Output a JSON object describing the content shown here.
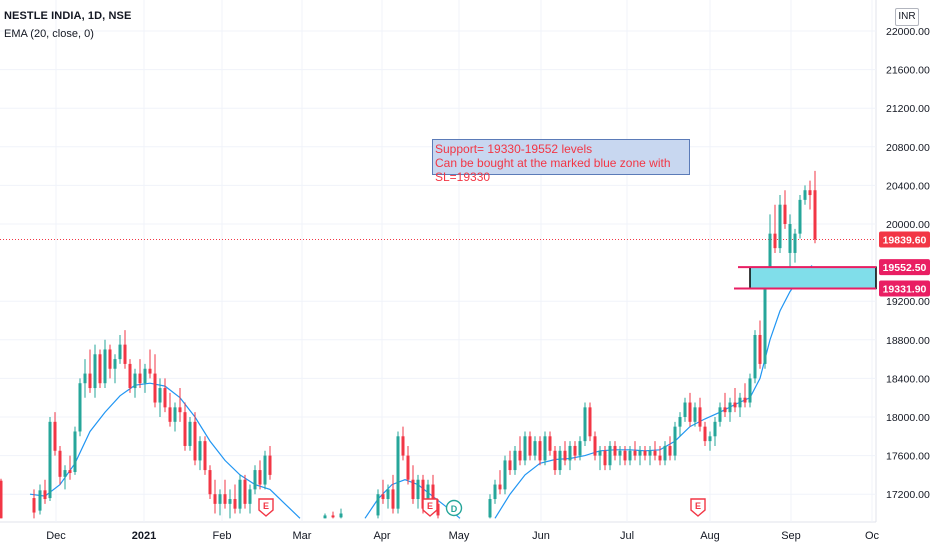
{
  "header": {
    "title": "NESTLE INDIA, 1D, NSE",
    "indicator": "EMA (20, close, 0)",
    "currency": "INR"
  },
  "annotation": {
    "line1": "Support= 19330-19552 levels",
    "line2": "Can be bought at the marked blue zone with SL=19330"
  },
  "price_labels": {
    "last": "19839.60",
    "zone_top": "19552.50",
    "zone_bottom": "19331.90"
  },
  "earnings_marker": "E",
  "dividend_marker": "D",
  "colors": {
    "up": "#26a69a",
    "down": "#f23645",
    "ema": "#2196f3",
    "zone_fill": "#80deea",
    "zone_line": "#e91e63",
    "last_price": "#f23645"
  },
  "chart_data": {
    "type": "candlestick",
    "title": "NESTLE INDIA, 1D, NSE",
    "indicator": "EMA (20, close, 0)",
    "y_axis": {
      "ticks": [
        "22000.00",
        "21600.00",
        "21200.00",
        "20800.00",
        "20400.00",
        "20000.00",
        "19200.00",
        "18800.00",
        "18400.00",
        "18000.00",
        "17600.00",
        "17200.00"
      ],
      "ylim": [
        16950,
        22200
      ]
    },
    "x_axis": {
      "ticks": [
        "Dec",
        "2021",
        "Feb",
        "Mar",
        "Apr",
        "May",
        "Jun",
        "Jul",
        "Aug",
        "Sep",
        "Oc"
      ]
    },
    "support_zone": [
      19331.9,
      19552.5
    ],
    "last_price": 19839.6,
    "earnings_markers": [
      "Feb",
      "Apr",
      "Aug"
    ],
    "dividend_markers": [
      "Apr"
    ],
    "ema_path_points": [
      [
        30,
        17200
      ],
      [
        45,
        17180
      ],
      [
        60,
        17300
      ],
      [
        75,
        17520
      ],
      [
        90,
        17850
      ],
      [
        105,
        18050
      ],
      [
        120,
        18220
      ],
      [
        135,
        18330
      ],
      [
        150,
        18350
      ],
      [
        165,
        18320
      ],
      [
        180,
        18200
      ],
      [
        195,
        18000
      ],
      [
        210,
        17750
      ],
      [
        225,
        17550
      ],
      [
        240,
        17400
      ],
      [
        255,
        17300
      ],
      [
        270,
        17250
      ],
      [
        285,
        17100
      ],
      [
        300,
        16950
      ],
      [
        365,
        16950
      ],
      [
        378,
        17150
      ],
      [
        392,
        17300
      ],
      [
        405,
        17350
      ],
      [
        418,
        17300
      ],
      [
        430,
        17200
      ],
      [
        445,
        17080
      ],
      [
        460,
        16950
      ],
      [
        495,
        16950
      ],
      [
        510,
        17200
      ],
      [
        525,
        17400
      ],
      [
        540,
        17520
      ],
      [
        555,
        17560
      ],
      [
        570,
        17570
      ],
      [
        585,
        17600
      ],
      [
        600,
        17650
      ],
      [
        615,
        17660
      ],
      [
        630,
        17660
      ],
      [
        645,
        17650
      ],
      [
        660,
        17660
      ],
      [
        675,
        17750
      ],
      [
        690,
        17900
      ],
      [
        705,
        17980
      ],
      [
        720,
        18050
      ],
      [
        735,
        18130
      ],
      [
        750,
        18200
      ],
      [
        760,
        18400
      ],
      [
        770,
        18800
      ],
      [
        780,
        19100
      ],
      [
        790,
        19300
      ],
      [
        800,
        19450
      ],
      [
        812,
        19570
      ]
    ],
    "candles": [
      [
        1,
        17340,
        17360,
        16950,
        16950,
        "d"
      ],
      [
        34,
        17160,
        17250,
        16950,
        17010,
        "d"
      ],
      [
        40,
        17030,
        17300,
        16990,
        17240,
        "u"
      ],
      [
        45,
        17240,
        17350,
        17100,
        17150,
        "d"
      ],
      [
        50,
        17160,
        18000,
        17130,
        17950,
        "u"
      ],
      [
        55,
        17950,
        18050,
        17600,
        17650,
        "d"
      ],
      [
        60,
        17650,
        17700,
        17300,
        17380,
        "d"
      ],
      [
        65,
        17380,
        17500,
        17250,
        17450,
        "u"
      ],
      [
        70,
        17450,
        17600,
        17350,
        17420,
        "d"
      ],
      [
        75,
        17430,
        17900,
        17400,
        17850,
        "u"
      ],
      [
        80,
        17850,
        18400,
        17800,
        18350,
        "u"
      ],
      [
        85,
        18350,
        18600,
        18200,
        18450,
        "u"
      ],
      [
        90,
        18450,
        18700,
        18250,
        18300,
        "d"
      ],
      [
        95,
        18300,
        18750,
        18200,
        18650,
        "u"
      ],
      [
        100,
        18650,
        18700,
        18300,
        18350,
        "d"
      ],
      [
        105,
        18350,
        18800,
        18300,
        18700,
        "u"
      ],
      [
        110,
        18700,
        18750,
        18400,
        18500,
        "d"
      ],
      [
        115,
        18500,
        18650,
        18350,
        18600,
        "u"
      ],
      [
        120,
        18600,
        18850,
        18550,
        18750,
        "u"
      ],
      [
        125,
        18750,
        18900,
        18500,
        18550,
        "d"
      ],
      [
        130,
        18550,
        18600,
        18250,
        18300,
        "d"
      ],
      [
        135,
        18300,
        18500,
        18200,
        18450,
        "u"
      ],
      [
        140,
        18450,
        18600,
        18300,
        18350,
        "d"
      ],
      [
        145,
        18350,
        18550,
        18250,
        18500,
        "u"
      ],
      [
        150,
        18500,
        18700,
        18400,
        18450,
        "d"
      ],
      [
        155,
        18450,
        18650,
        18100,
        18150,
        "d"
      ],
      [
        160,
        18150,
        18400,
        18000,
        18300,
        "u"
      ],
      [
        165,
        18300,
        18400,
        18050,
        18100,
        "d"
      ],
      [
        170,
        18100,
        18250,
        17900,
        17950,
        "d"
      ],
      [
        175,
        17950,
        18150,
        17850,
        18100,
        "u"
      ],
      [
        180,
        18100,
        18300,
        17950,
        18050,
        "d"
      ],
      [
        185,
        18050,
        18150,
        17650,
        17700,
        "d"
      ],
      [
        190,
        17700,
        18000,
        17650,
        17950,
        "u"
      ],
      [
        195,
        17950,
        18050,
        17500,
        17550,
        "d"
      ],
      [
        200,
        17550,
        17800,
        17450,
        17750,
        "u"
      ],
      [
        205,
        17750,
        17800,
        17400,
        17450,
        "d"
      ],
      [
        210,
        17450,
        17500,
        17150,
        17200,
        "d"
      ],
      [
        215,
        17200,
        17350,
        17000,
        17100,
        "d"
      ],
      [
        220,
        17100,
        17250,
        16980,
        17200,
        "u"
      ],
      [
        225,
        17200,
        17350,
        17050,
        17100,
        "d"
      ],
      [
        230,
        17100,
        17250,
        16950,
        17150,
        "u"
      ],
      [
        235,
        17150,
        17300,
        17000,
        17050,
        "d"
      ],
      [
        240,
        17050,
        17400,
        17000,
        17350,
        "u"
      ],
      [
        245,
        17350,
        17400,
        17050,
        17100,
        "d"
      ],
      [
        250,
        17100,
        17300,
        17000,
        17250,
        "u"
      ],
      [
        255,
        17250,
        17500,
        17200,
        17450,
        "u"
      ],
      [
        260,
        17450,
        17550,
        17250,
        17300,
        "d"
      ],
      [
        265,
        17300,
        17650,
        17250,
        17600,
        "u"
      ],
      [
        270,
        17600,
        17700,
        17350,
        17400,
        "d"
      ],
      [
        325,
        16950,
        17000,
        16950,
        16980,
        "u"
      ],
      [
        333,
        16980,
        17020,
        16950,
        16960,
        "d"
      ],
      [
        341,
        16960,
        17050,
        16950,
        17000,
        "u"
      ],
      [
        378,
        16980,
        17250,
        16950,
        17200,
        "u"
      ],
      [
        383,
        17200,
        17350,
        17100,
        17150,
        "d"
      ],
      [
        388,
        17150,
        17300,
        17050,
        17250,
        "u"
      ],
      [
        393,
        17250,
        17400,
        17000,
        17050,
        "d"
      ],
      [
        398,
        17050,
        17850,
        17000,
        17800,
        "u"
      ],
      [
        403,
        17800,
        17900,
        17550,
        17600,
        "d"
      ],
      [
        408,
        17600,
        17700,
        17300,
        17350,
        "d"
      ],
      [
        413,
        17350,
        17500,
        17100,
        17150,
        "d"
      ],
      [
        418,
        17150,
        17400,
        17050,
        17350,
        "u"
      ],
      [
        423,
        17350,
        17400,
        17000,
        17050,
        "d"
      ],
      [
        428,
        17050,
        17350,
        16990,
        17300,
        "u"
      ],
      [
        433,
        17300,
        17400,
        17050,
        17100,
        "d"
      ],
      [
        438,
        17100,
        17150,
        16950,
        16980,
        "d"
      ],
      [
        490,
        16960,
        17200,
        16950,
        17150,
        "u"
      ],
      [
        495,
        17150,
        17350,
        17100,
        17300,
        "u"
      ],
      [
        500,
        17300,
        17450,
        17200,
        17250,
        "d"
      ],
      [
        505,
        17250,
        17600,
        17200,
        17550,
        "u"
      ],
      [
        510,
        17550,
        17650,
        17400,
        17450,
        "d"
      ],
      [
        515,
        17450,
        17700,
        17400,
        17650,
        "u"
      ],
      [
        520,
        17650,
        17800,
        17500,
        17550,
        "d"
      ],
      [
        525,
        17550,
        17850,
        17500,
        17800,
        "u"
      ],
      [
        530,
        17800,
        17850,
        17550,
        17600,
        "d"
      ],
      [
        535,
        17600,
        17800,
        17550,
        17750,
        "u"
      ],
      [
        540,
        17750,
        17800,
        17500,
        17550,
        "d"
      ],
      [
        545,
        17550,
        17850,
        17500,
        17800,
        "u"
      ],
      [
        550,
        17800,
        17850,
        17600,
        17650,
        "d"
      ],
      [
        555,
        17650,
        17700,
        17400,
        17450,
        "d"
      ],
      [
        560,
        17450,
        17700,
        17400,
        17650,
        "u"
      ],
      [
        565,
        17650,
        17750,
        17500,
        17550,
        "d"
      ],
      [
        570,
        17550,
        17750,
        17450,
        17700,
        "u"
      ],
      [
        575,
        17700,
        17750,
        17550,
        17600,
        "d"
      ],
      [
        580,
        17600,
        17800,
        17550,
        17750,
        "u"
      ],
      [
        585,
        17750,
        18150,
        17700,
        18100,
        "u"
      ],
      [
        590,
        18100,
        18150,
        17750,
        17800,
        "d"
      ],
      [
        595,
        17800,
        17850,
        17550,
        17600,
        "d"
      ],
      [
        600,
        17600,
        17700,
        17450,
        17650,
        "u"
      ],
      [
        605,
        17650,
        17700,
        17450,
        17500,
        "d"
      ],
      [
        610,
        17500,
        17750,
        17450,
        17700,
        "u"
      ],
      [
        615,
        17700,
        17750,
        17550,
        17600,
        "d"
      ],
      [
        620,
        17600,
        17700,
        17500,
        17650,
        "u"
      ],
      [
        625,
        17650,
        17700,
        17500,
        17550,
        "d"
      ],
      [
        630,
        17550,
        17700,
        17500,
        17650,
        "u"
      ],
      [
        635,
        17650,
        17750,
        17550,
        17600,
        "d"
      ],
      [
        640,
        17600,
        17700,
        17500,
        17650,
        "u"
      ],
      [
        645,
        17650,
        17700,
        17550,
        17600,
        "d"
      ],
      [
        650,
        17600,
        17700,
        17500,
        17650,
        "u"
      ],
      [
        655,
        17650,
        17750,
        17550,
        17600,
        "d"
      ],
      [
        660,
        17600,
        17700,
        17500,
        17550,
        "d"
      ],
      [
        665,
        17550,
        17750,
        17500,
        17700,
        "u"
      ],
      [
        670,
        17700,
        17800,
        17550,
        17600,
        "d"
      ],
      [
        675,
        17600,
        17950,
        17550,
        17900,
        "u"
      ],
      [
        680,
        17900,
        18050,
        17800,
        18000,
        "u"
      ],
      [
        685,
        18000,
        18200,
        17950,
        18150,
        "u"
      ],
      [
        690,
        18150,
        18250,
        17900,
        17950,
        "d"
      ],
      [
        695,
        17950,
        18150,
        17900,
        18100,
        "u"
      ],
      [
        700,
        18100,
        18200,
        17850,
        17900,
        "d"
      ],
      [
        705,
        17900,
        17950,
        17700,
        17750,
        "d"
      ],
      [
        710,
        17750,
        17850,
        17650,
        17800,
        "u"
      ],
      [
        715,
        17800,
        18000,
        17700,
        17950,
        "u"
      ],
      [
        720,
        17950,
        18150,
        17900,
        18100,
        "u"
      ],
      [
        725,
        18100,
        18250,
        18000,
        18050,
        "d"
      ],
      [
        730,
        18050,
        18200,
        17950,
        18150,
        "u"
      ],
      [
        735,
        18150,
        18300,
        18050,
        18100,
        "d"
      ],
      [
        740,
        18100,
        18250,
        18000,
        18200,
        "u"
      ],
      [
        745,
        18200,
        18350,
        18100,
        18150,
        "d"
      ],
      [
        750,
        18150,
        18450,
        18100,
        18400,
        "u"
      ],
      [
        755,
        18400,
        18900,
        18350,
        18850,
        "u"
      ],
      [
        760,
        18850,
        19000,
        18500,
        18550,
        "d"
      ],
      [
        765,
        18550,
        19550,
        18500,
        19500,
        "u"
      ],
      [
        770,
        19500,
        20100,
        19450,
        19900,
        "u"
      ],
      [
        775,
        19900,
        20200,
        19700,
        19750,
        "d"
      ],
      [
        780,
        19750,
        20300,
        19700,
        20200,
        "u"
      ],
      [
        785,
        20200,
        20350,
        19950,
        20000,
        "d"
      ],
      [
        790,
        20000,
        20100,
        19350,
        19700,
        "u"
      ],
      [
        795,
        19700,
        19950,
        19600,
        19900,
        "u"
      ],
      [
        800,
        19900,
        20300,
        19850,
        20250,
        "u"
      ],
      [
        805,
        20250,
        20400,
        20200,
        20350,
        "u"
      ],
      [
        810,
        20350,
        20450,
        20150,
        20300,
        "d"
      ],
      [
        815,
        20350,
        20550,
        19800,
        19840,
        "d"
      ]
    ]
  }
}
